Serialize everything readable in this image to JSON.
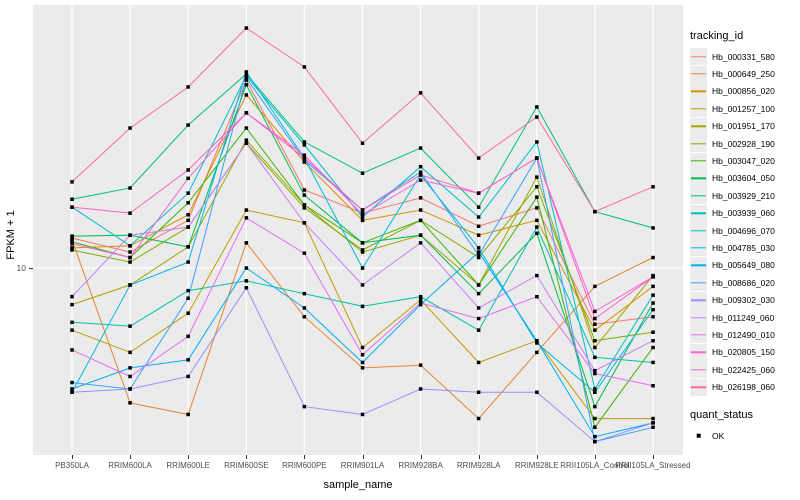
{
  "chart_data": {
    "type": "line",
    "title": "",
    "xlabel": "sample_name",
    "ylabel": "FPKM + 1",
    "y_scale": "log10",
    "ylim": [
      2.15,
      86.9
    ],
    "y_ticks": [
      {
        "value": 10,
        "label": "10"
      }
    ],
    "grid": {
      "vertical_major": true,
      "horizontal_major": true,
      "gridline_color": "#FFFFFF",
      "panel_background": "#EBEBEB"
    },
    "legend_position": "right",
    "point_marker": {
      "shape": "filled-square",
      "color": "#000000"
    },
    "x_categories": [
      "PB350LA",
      "RRIM600LA",
      "RRIM600LE",
      "RRIM600SE",
      "RRIM600PE",
      "RRIM901LA",
      "RRIM928BA",
      "RRIM928LA",
      "RRIM928LE",
      "RRII105LA_Control",
      "RRII105LA_Stressed"
    ],
    "series": [
      {
        "tracking_id": "Hb_000331_580",
        "color": "#F8766D",
        "values": [
          12.8,
          11.4,
          14.8,
          46.9,
          19.0,
          15.7,
          17.8,
          14.1,
          16.4,
          6.3,
          6.7
        ]
      },
      {
        "tracking_id": "Hb_000649_250",
        "color": "#EA8331",
        "values": [
          12.6,
          3.3,
          3.0,
          12.3,
          6.7,
          4.4,
          4.5,
          2.9,
          5.0,
          8.6,
          10.9
        ]
      },
      {
        "tracking_id": "Hb_000856_020",
        "color": "#D89000",
        "values": [
          11.8,
          12.0,
          15.5,
          41.5,
          23.9,
          14.8,
          16.1,
          13.1,
          14.8,
          6.0,
          8.6
        ]
      },
      {
        "tracking_id": "Hb_001257_100",
        "color": "#C09B00",
        "values": [
          6.0,
          5.0,
          6.9,
          16.1,
          14.5,
          5.2,
          7.7,
          4.6,
          5.5,
          2.9,
          2.9
        ]
      },
      {
        "tracking_id": "Hb_001951_170",
        "color": "#A3A500",
        "values": [
          7.4,
          8.7,
          11.9,
          28.6,
          16.8,
          11.4,
          13.1,
          8.7,
          21.1,
          5.2,
          9.4
        ]
      },
      {
        "tracking_id": "Hb_002928_190",
        "color": "#7CAE00",
        "values": [
          11.6,
          10.5,
          14.0,
          27.9,
          16.4,
          11.6,
          14.8,
          10.9,
          19.5,
          5.5,
          5.9
        ]
      },
      {
        "tracking_id": "Hb_003047_020",
        "color": "#39B600",
        "values": [
          12.4,
          10.9,
          17.1,
          31.6,
          16.8,
          12.3,
          14.8,
          8.7,
          17.9,
          2.7,
          5.2
        ]
      },
      {
        "tracking_id": "Hb_003604_050",
        "color": "#00BB4E",
        "values": [
          13.0,
          13.1,
          11.9,
          45.1,
          18.2,
          12.3,
          13.1,
          8.1,
          13.3,
          3.2,
          7.5
        ]
      },
      {
        "tracking_id": "Hb_003929_210",
        "color": "#00BF7D",
        "values": [
          17.6,
          19.3,
          32.4,
          49.3,
          28.2,
          21.8,
          26.8,
          16.5,
          37.6,
          15.9,
          13.9
        ]
      },
      {
        "tracking_id": "Hb_003939_060",
        "color": "#00C0AF",
        "values": [
          6.4,
          6.2,
          8.3,
          9.0,
          8.1,
          7.3,
          7.9,
          6.0,
          14.0,
          4.8,
          4.6
        ]
      },
      {
        "tracking_id": "Hb_004696_070",
        "color": "#00BFC4",
        "values": [
          16.5,
          12.0,
          18.5,
          48.5,
          27.5,
          15.2,
          23.0,
          15.2,
          28.2,
          3.7,
          8.0
        ]
      },
      {
        "tracking_id": "Hb_004785_030",
        "color": "#00B8E7",
        "values": [
          3.6,
          8.7,
          10.5,
          50.1,
          24.7,
          10.0,
          21.5,
          11.8,
          5.4,
          3.6,
          7.1
        ]
      },
      {
        "tracking_id": "Hb_005649_080",
        "color": "#00ACFC",
        "values": [
          3.7,
          4.4,
          4.7,
          10.0,
          7.2,
          4.6,
          7.4,
          11.4,
          5.5,
          2.5,
          2.8
        ]
      },
      {
        "tracking_id": "Hb_008686_020",
        "color": "#35A2FF",
        "values": [
          3.9,
          3.7,
          7.8,
          47.7,
          24.3,
          16.1,
          22.0,
          11.1,
          24.7,
          2.4,
          2.7
        ]
      },
      {
        "tracking_id": "Hb_009302_030",
        "color": "#9590FF",
        "values": [
          3.6,
          3.7,
          4.1,
          8.5,
          3.2,
          3.0,
          3.7,
          3.6,
          3.6,
          2.4,
          2.8
        ]
      },
      {
        "tracking_id": "Hb_011249_060",
        "color": "#C77CFF",
        "values": [
          7.9,
          13.1,
          14.0,
          27.9,
          14.5,
          8.7,
          12.3,
          7.2,
          9.4,
          4.3,
          5.5
        ]
      },
      {
        "tracking_id": "Hb_012490_010",
        "color": "#E76BF3",
        "values": [
          5.1,
          4.1,
          5.7,
          15.1,
          11.3,
          4.9,
          7.5,
          6.6,
          7.9,
          4.2,
          3.8
        ]
      },
      {
        "tracking_id": "Hb_020805_150",
        "color": "#FA62DB",
        "values": [
          12.2,
          10.9,
          20.9,
          35.8,
          25.3,
          15.5,
          20.6,
          18.5,
          24.7,
          7.0,
          9.3
        ]
      },
      {
        "tracking_id": "Hb_022425_060",
        "color": "#FF61C3",
        "values": [
          16.5,
          15.7,
          22.4,
          35.8,
          24.7,
          16.1,
          21.5,
          18.5,
          24.7,
          6.6,
          9.3
        ]
      },
      {
        "tracking_id": "Hb_026198_060",
        "color": "#FF6A98",
        "values": [
          20.3,
          31.6,
          44.3,
          71.9,
          52.2,
          27.9,
          42.2,
          24.7,
          34.6,
          15.9,
          19.5
        ]
      }
    ],
    "legend": {
      "tracking_title": "tracking_id",
      "quant_title": "quant_status",
      "quant_items": [
        {
          "label": "OK",
          "marker": "black-square"
        }
      ]
    }
  }
}
